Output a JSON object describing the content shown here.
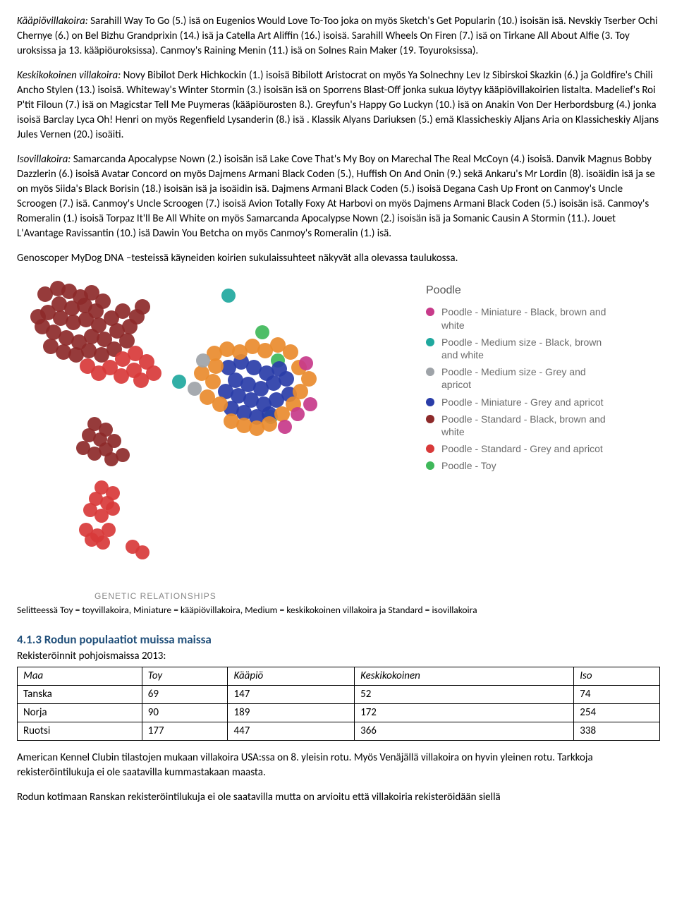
{
  "paragraphs": {
    "miniature": {
      "title": "Kääpiövillakoira:",
      "text": " Sarahill Way To Go (5.) isä on Eugenios Would Love To-Too joka on myös Sketch's Get Popularin (10.) isoisän isä. Nevskiy Tserber Ochi Chernye (6.) on Bel Bizhu Grandprixin (14.) isä ja Catella Art Aliffin (16.) isoisä. Sarahill Wheels On Firen (7.) isä on Tirkane All About Alfie (3. Toy uroksissa ja 13. kääpiöuroksissa). Canmoy's Raining Menin (11.) isä on Solnes Rain Maker (19. Toyuroksissa)."
    },
    "medium": {
      "title": "Keskikokoinen villakoira:",
      "text": " Novy Bibilot Derk Hichkockin (1.) isoisä Bibilott Aristocrat on myös Ya Solnechny Lev Iz Sibirskoi Skazkin (6.) ja Goldfire's Chili Ancho Stylen (13.) isoisä. Whiteway's Winter Stormin (3.) isoisän isä on Sporrens Blast-Off jonka sukua löytyy kääpiövillakoirien listalta. Madelief's Roi P'tit Filoun (7.)  isä on Magicstar Tell Me Puymeras (kääpiöurosten 8.). Greyfun's Happy Go Luckyn (10.) isä on Anakin Von Der Herbordsburg (4.) jonka isoisä Barclay Lyca Oh! Henri on myös Regenfield Lysanderin (8.) isä . Klassik Alyans Dariuksen (5.) emä Klassicheskiy Aljans Aria on Klassicheskiy Aljans Jules Vernen (20.) isoäiti."
    },
    "standard": {
      "title": "Isovillakoira:",
      "text": " Samarcanda Apocalypse Nown (2.) isoisän isä Lake Cove That's My Boy on Marechal The Real McCoyn (4.) isoisä. Danvik Magnus Bobby Dazzlerin (6.) isoisä Avatar Concord on myös Dajmens Armani Black Coden (5.), Huffish On And Onin (9.) sekä Ankaru's Mr Lordin (8). isoäidin isä ja se on myös Siida's Black Borisin (18.) isoisän isä ja isoäidin isä. Dajmens Armani Black Coden (5.) isoisä Degana Cash Up Front on Canmoy's Uncle Scroogen (7.) isä. Canmoy's Uncle Scroogen (7.) isoisä Avion Totally Foxy At Harbovi on myös Dajmens Armani Black Coden (5.) isoisän isä. Canmoy's Romeralin (1.) isoisä Torpaz It'll Be All White on myös Samarcanda Apocalypse Nown (2.)  isoisän isä ja Somanic Causin A Stormin (11.). Jouet L'Avantage Ravissantin (10.) isä Dawin You Betcha on myös Canmoy's Romeralin (1.) isä."
    },
    "dna_intro": "Genoscoper MyDog DNA –testeissä käyneiden koirien sukulaissuhteet näkyvät alla olevassa taulukossa.",
    "chart_caption_label": "GENETIC RELATIONSHIPS",
    "chart_caption": "Selitteessä Toy = toyvillakoira, Miniature = kääpiövillakoira, Medium = keskikokoinen villakoira ja Standard = isovillakoira"
  },
  "chart": {
    "legend_title": "Poodle",
    "legend": [
      {
        "color": "#c73a8a",
        "label": "Poodle - Miniature - Black, brown and white"
      },
      {
        "color": "#1fa89e",
        "label": "Poodle - Medium size - Black, brown and white"
      },
      {
        "color": "#9ea3a8",
        "label": "Poodle - Medium size - Grey and apricot"
      },
      {
        "color": "#2a3da8",
        "label": "Poodle - Miniature - Grey and apricot"
      },
      {
        "color": "#8d2a2a",
        "label": "Poodle - Standard - Black, brown and white"
      },
      {
        "color": "#d83a3a",
        "label": "Poodle - Standard - Grey and apricot"
      },
      {
        "color": "#3fb85a",
        "label": "Poodle - Toy"
      }
    ],
    "colors": {
      "min_bbw": "#c73a8a",
      "med_bbw": "#1fa89e",
      "med_ga": "#9ea3a8",
      "min_ga": "#2a3da8",
      "std_bbw": "#8d2a2a",
      "std_ga": "#d83a3a",
      "toy": "#3fb85a",
      "orange": "#e98b2e"
    },
    "clusters": [
      {
        "color_key": "std_bbw",
        "r": 11,
        "points": [
          [
            40,
            26
          ],
          [
            58,
            18
          ],
          [
            74,
            22
          ],
          [
            90,
            30
          ],
          [
            106,
            24
          ],
          [
            122,
            36
          ],
          [
            60,
            40
          ],
          [
            78,
            46
          ],
          [
            96,
            42
          ],
          [
            112,
            50
          ],
          [
            44,
            52
          ],
          [
            62,
            60
          ],
          [
            80,
            66
          ],
          [
            98,
            62
          ],
          [
            116,
            70
          ],
          [
            134,
            60
          ],
          [
            150,
            50
          ],
          [
            142,
            78
          ],
          [
            124,
            90
          ],
          [
            106,
            86
          ],
          [
            88,
            94
          ],
          [
            70,
            88
          ],
          [
            52,
            80
          ],
          [
            36,
            72
          ],
          [
            30,
            58
          ],
          [
            48,
            100
          ],
          [
            66,
            108
          ],
          [
            84,
            112
          ],
          [
            102,
            106
          ],
          [
            120,
            112
          ],
          [
            138,
            104
          ],
          [
            156,
            92
          ],
          [
            160,
            72
          ],
          [
            170,
            58
          ],
          [
            178,
            44
          ]
        ]
      },
      {
        "color_key": "std_ga",
        "r": 11,
        "points": [
          [
            150,
            118
          ],
          [
            168,
            110
          ],
          [
            184,
            122
          ],
          [
            166,
            134
          ],
          [
            148,
            142
          ],
          [
            176,
            148
          ],
          [
            194,
            138
          ],
          [
            132,
            130
          ],
          [
            116,
            138
          ],
          [
            100,
            128
          ]
        ]
      },
      {
        "color_key": "std_bbw",
        "r": 10,
        "points": [
          [
            110,
            210
          ],
          [
            126,
            218
          ],
          [
            118,
            232
          ],
          [
            102,
            226
          ],
          [
            94,
            244
          ],
          [
            110,
            252
          ],
          [
            126,
            246
          ],
          [
            138,
            234
          ],
          [
            134,
            260
          ],
          [
            150,
            254
          ]
        ]
      },
      {
        "color_key": "std_ga",
        "r": 10,
        "points": [
          [
            120,
            300
          ],
          [
            136,
            308
          ],
          [
            128,
            322
          ],
          [
            112,
            316
          ],
          [
            104,
            332
          ],
          [
            120,
            340
          ],
          [
            136,
            330
          ],
          [
            98,
            360
          ],
          [
            114,
            368
          ],
          [
            130,
            360
          ],
          [
            122,
            378
          ],
          [
            106,
            374
          ]
        ]
      },
      {
        "color_key": "std_ga",
        "r": 10,
        "points": [
          [
            164,
            384
          ],
          [
            178,
            392
          ]
        ]
      },
      {
        "color_key": "med_bbw",
        "r": 10,
        "points": [
          [
            230,
            150
          ],
          [
            300,
            28
          ],
          [
            360,
            200
          ]
        ]
      },
      {
        "color_key": "toy",
        "r": 10,
        "points": [
          [
            348,
            80
          ],
          [
            370,
            120
          ]
        ]
      },
      {
        "color_key": "min_ga",
        "r": 11,
        "points": [
          [
            300,
            130
          ],
          [
            318,
            122
          ],
          [
            336,
            130
          ],
          [
            354,
            138
          ],
          [
            372,
            132
          ],
          [
            310,
            148
          ],
          [
            328,
            154
          ],
          [
            346,
            160
          ],
          [
            364,
            152
          ],
          [
            382,
            146
          ],
          [
            296,
            164
          ],
          [
            314,
            170
          ],
          [
            332,
            176
          ],
          [
            350,
            182
          ],
          [
            368,
            176
          ],
          [
            386,
            168
          ],
          [
            304,
            188
          ],
          [
            322,
            194
          ],
          [
            340,
            200
          ],
          [
            358,
            196
          ]
        ]
      },
      {
        "color_key": "orange",
        "r": 11,
        "points": [
          [
            280,
            110
          ],
          [
            298,
            104
          ],
          [
            316,
            108
          ],
          [
            334,
            100
          ],
          [
            352,
            106
          ],
          [
            370,
            98
          ],
          [
            388,
            108
          ],
          [
            282,
            128
          ],
          [
            262,
            138
          ],
          [
            278,
            150
          ],
          [
            270,
            172
          ],
          [
            288,
            182
          ],
          [
            400,
            130
          ],
          [
            414,
            146
          ],
          [
            402,
            164
          ],
          [
            392,
            182
          ],
          [
            376,
            196
          ],
          [
            358,
            210
          ],
          [
            340,
            216
          ],
          [
            322,
            212
          ],
          [
            304,
            206
          ]
        ]
      },
      {
        "color_key": "min_bbw",
        "r": 10,
        "points": [
          [
            398,
            196
          ],
          [
            416,
            182
          ],
          [
            380,
            214
          ],
          [
            410,
            124
          ]
        ]
      },
      {
        "color_key": "med_ga",
        "r": 10,
        "points": [
          [
            264,
            120
          ],
          [
            252,
            160
          ]
        ]
      }
    ]
  },
  "section413": {
    "heading": "4.1.3 Rodun populaatiot muissa maissa",
    "subline": "Rekisteröinnit pohjoismaissa 2013:",
    "table": {
      "headers": [
        "Maa",
        "Toy",
        "Kääpiö",
        "Keskikokoinen",
        "Iso"
      ],
      "rows": [
        [
          "Tanska",
          "69",
          "147",
          "52",
          "74"
        ],
        [
          "Norja",
          "90",
          "189",
          "172",
          "254"
        ],
        [
          "Ruotsi",
          "177",
          "447",
          "366",
          "338"
        ]
      ]
    },
    "para1": "American Kennel Clubin tilastojen mukaan villakoira USA:ssa on 8. yleisin rotu. Myös Venäjällä villakoira on hyvin yleinen rotu. Tarkkoja rekisteröintilukuja ei ole saatavilla kummastakaan maasta.",
    "para2": "Rodun kotimaan Ranskan rekisteröintilukuja ei ole saatavilla mutta on arvioitu että villakoiria rekisteröidään siellä"
  }
}
